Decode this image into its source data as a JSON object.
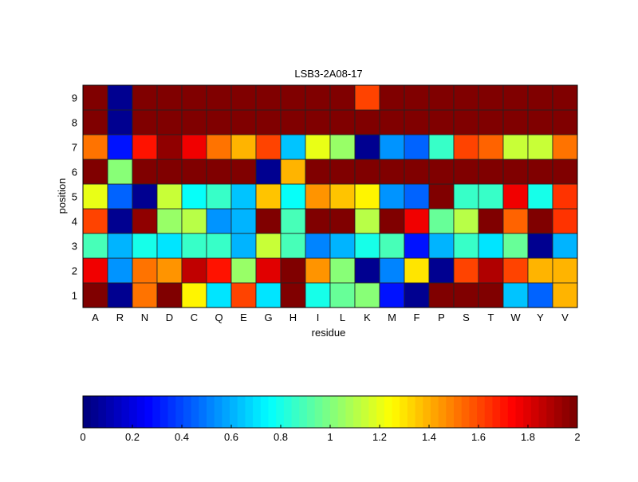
{
  "chart_data": {
    "type": "heatmap",
    "title": "LSB3-2A08-17",
    "xlabel": "residue",
    "ylabel": "position",
    "x_categories": [
      "A",
      "R",
      "N",
      "D",
      "C",
      "Q",
      "E",
      "G",
      "H",
      "I",
      "L",
      "K",
      "M",
      "F",
      "P",
      "S",
      "T",
      "W",
      "Y",
      "V"
    ],
    "y_categories": [
      "1",
      "2",
      "3",
      "4",
      "5",
      "6",
      "7",
      "8",
      "9"
    ],
    "colormap": "jet",
    "clim": [
      0,
      2
    ],
    "colorbar": {
      "placement": "bottom",
      "ticks": [
        "0",
        "0.2",
        "0.4",
        "0.6",
        "0.8",
        "1",
        "1.2",
        "1.4",
        "1.6",
        "1.8",
        "2"
      ]
    },
    "values_by_position": {
      "1": [
        2,
        0.05,
        1.5,
        2,
        1.25,
        0.7,
        1.6,
        0.7,
        2,
        0.8,
        0.95,
        1.0,
        0.3,
        0.05,
        2,
        2,
        2,
        0.65,
        0.45,
        1.4
      ],
      "2": [
        1.75,
        0.55,
        1.5,
        1.45,
        1.85,
        1.7,
        1.05,
        1.8,
        2,
        1.45,
        1.0,
        0.05,
        0.5,
        1.3,
        0.05,
        1.6,
        1.9,
        1.6,
        1.4,
        1.4
      ],
      "3": [
        0.9,
        0.6,
        0.8,
        0.7,
        0.85,
        0.85,
        0.6,
        1.15,
        0.9,
        0.5,
        0.6,
        0.8,
        0.9,
        0.3,
        0.6,
        0.85,
        0.7,
        0.95,
        0.05,
        0.6
      ],
      "4": [
        1.6,
        0.05,
        1.95,
        1.05,
        1.1,
        0.55,
        0.6,
        2,
        0.9,
        2,
        2,
        1.1,
        2,
        1.75,
        0.95,
        1.1,
        2,
        1.55,
        2,
        1.65
      ],
      "5": [
        1.2,
        0.45,
        0.05,
        1.15,
        0.75,
        0.85,
        0.65,
        1.35,
        0.75,
        1.45,
        1.35,
        1.25,
        0.55,
        0.45,
        2,
        0.85,
        0.85,
        1.75,
        0.8,
        1.65
      ],
      "6": [
        2,
        1.0,
        2,
        2,
        2,
        2,
        2,
        0.05,
        1.4,
        2,
        2,
        2,
        2,
        2,
        2,
        2,
        2,
        2,
        2,
        2
      ],
      "7": [
        1.5,
        0.3,
        1.7,
        1.95,
        1.75,
        1.5,
        1.4,
        1.6,
        0.65,
        1.2,
        1.05,
        0.05,
        0.55,
        0.45,
        0.85,
        1.6,
        1.55,
        1.15,
        1.15,
        1.5
      ],
      "8": [
        2,
        0.05,
        2,
        2,
        2,
        2,
        2,
        2,
        2,
        2,
        2,
        2,
        2,
        2,
        2,
        2,
        2,
        2,
        2,
        2
      ],
      "9": [
        2,
        0.05,
        2,
        2,
        2,
        2,
        2,
        2,
        2,
        2,
        2,
        1.6,
        2,
        2,
        2,
        2,
        2,
        2,
        2,
        2
      ]
    }
  }
}
